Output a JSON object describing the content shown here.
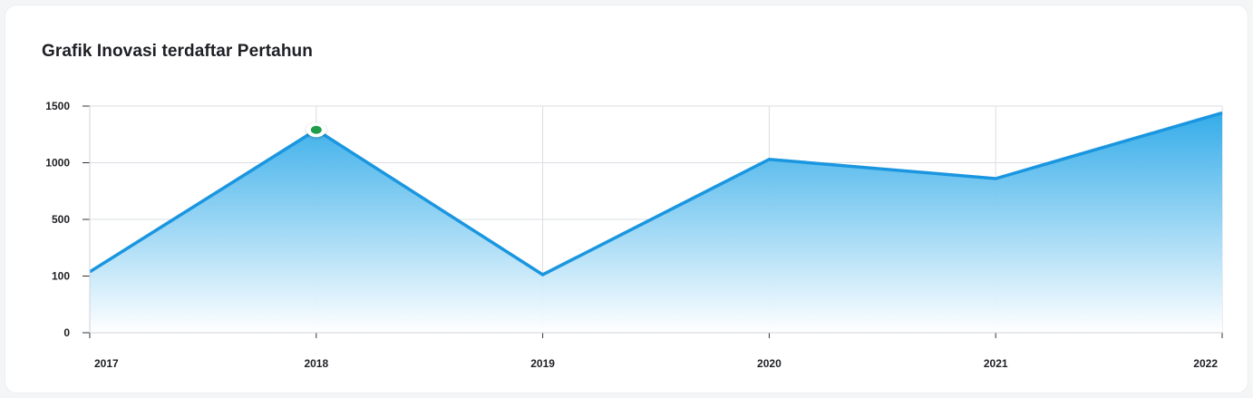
{
  "chart_data": {
    "type": "area",
    "title": "Grafik Inovasi terdaftar Pertahun",
    "categories": [
      "2017",
      "2018",
      "2019",
      "2020",
      "2021",
      "2022"
    ],
    "y_ticks": [
      "1500",
      "1000",
      "500",
      "100",
      "0"
    ],
    "series": [
      {
        "values": [
          130,
          1290,
          110,
          1030,
          860,
          1440
        ]
      }
    ],
    "highlighted_point": {
      "category": "2018",
      "value": 1290
    },
    "grid": true,
    "colors": {
      "line": "#1a96e0",
      "fill_top": "#2aa8e8",
      "fill_bottom": "#ffffff",
      "marker": "#1e9e4a",
      "grid": "#dadde2"
    }
  }
}
